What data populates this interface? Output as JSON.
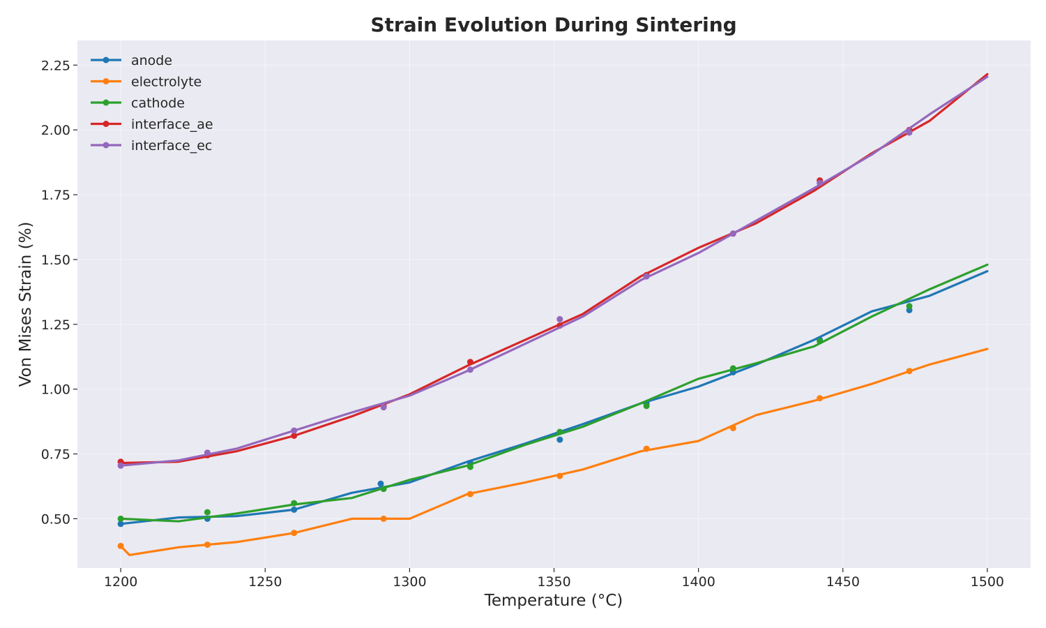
{
  "chart_data": {
    "type": "line",
    "title": "Strain Evolution During Sintering",
    "xlabel": "Temperature (°C)",
    "ylabel": "Von Mises Strain (%)",
    "xlim": [
      1185,
      1515
    ],
    "ylim": [
      0.31,
      2.345
    ],
    "xticks": [
      1200,
      1250,
      1300,
      1350,
      1400,
      1450,
      1500
    ],
    "yticks": [
      0.5,
      0.75,
      1.0,
      1.25,
      1.5,
      1.75,
      2.0,
      2.25
    ],
    "ytick_labels": [
      "0.50",
      "0.75",
      "1.00",
      "1.25",
      "1.50",
      "1.75",
      "2.00",
      "2.25"
    ],
    "grid": true,
    "legend": "top-left",
    "series": [
      {
        "name": "anode",
        "color": "#1f77b4",
        "x": [
          1200,
          1220,
          1240,
          1260,
          1280,
          1300,
          1320,
          1340,
          1360,
          1380,
          1400,
          1420,
          1440,
          1460,
          1480,
          1500
        ],
        "y": [
          0.48,
          0.505,
          0.51,
          0.535,
          0.6,
          0.64,
          0.72,
          0.79,
          0.865,
          0.945,
          1.01,
          1.095,
          1.19,
          1.3,
          1.36,
          1.455
        ],
        "markers": [
          [
            1200,
            0.48
          ],
          [
            1230,
            0.5
          ],
          [
            1260,
            0.535
          ],
          [
            1290,
            0.635
          ],
          [
            1321,
            0.715
          ],
          [
            1352,
            0.805
          ],
          [
            1382,
            0.945
          ],
          [
            1412,
            1.065
          ],
          [
            1442,
            1.19
          ],
          [
            1473,
            1.305
          ]
        ]
      },
      {
        "name": "electrolyte",
        "color": "#ff7f0e",
        "x": [
          1200,
          1203,
          1220,
          1240,
          1260,
          1280,
          1300,
          1320,
          1340,
          1360,
          1380,
          1400,
          1420,
          1440,
          1460,
          1480,
          1500
        ],
        "y": [
          0.395,
          0.36,
          0.39,
          0.41,
          0.445,
          0.5,
          0.5,
          0.595,
          0.64,
          0.69,
          0.76,
          0.8,
          0.9,
          0.955,
          1.02,
          1.095,
          1.155
        ],
        "markers": [
          [
            1200,
            0.395
          ],
          [
            1230,
            0.4
          ],
          [
            1260,
            0.445
          ],
          [
            1291,
            0.5
          ],
          [
            1321,
            0.595
          ],
          [
            1352,
            0.665
          ],
          [
            1382,
            0.77
          ],
          [
            1412,
            0.85
          ],
          [
            1442,
            0.965
          ],
          [
            1473,
            1.07
          ]
        ]
      },
      {
        "name": "cathode",
        "color": "#2ca02c",
        "x": [
          1200,
          1220,
          1240,
          1260,
          1280,
          1300,
          1320,
          1340,
          1360,
          1380,
          1400,
          1420,
          1440,
          1460,
          1480,
          1500
        ],
        "y": [
          0.5,
          0.49,
          0.52,
          0.555,
          0.58,
          0.65,
          0.705,
          0.785,
          0.855,
          0.945,
          1.04,
          1.1,
          1.165,
          1.28,
          1.385,
          1.48
        ],
        "markers": [
          [
            1200,
            0.5
          ],
          [
            1230,
            0.525
          ],
          [
            1260,
            0.56
          ],
          [
            1291,
            0.615
          ],
          [
            1321,
            0.7
          ],
          [
            1352,
            0.835
          ],
          [
            1382,
            0.935
          ],
          [
            1412,
            1.08
          ],
          [
            1442,
            1.185
          ],
          [
            1473,
            1.32
          ]
        ]
      },
      {
        "name": "interface_ae",
        "color": "#d62728",
        "x": [
          1200,
          1220,
          1240,
          1260,
          1280,
          1300,
          1320,
          1340,
          1360,
          1380,
          1400,
          1420,
          1440,
          1460,
          1480,
          1500
        ],
        "y": [
          0.715,
          0.72,
          0.76,
          0.82,
          0.895,
          0.98,
          1.09,
          1.19,
          1.29,
          1.435,
          1.545,
          1.64,
          1.765,
          1.91,
          2.035,
          2.215
        ],
        "markers": [
          [
            1200,
            0.72
          ],
          [
            1230,
            0.745
          ],
          [
            1260,
            0.82
          ],
          [
            1291,
            0.935
          ],
          [
            1321,
            1.105
          ],
          [
            1352,
            1.245
          ],
          [
            1382,
            1.44
          ],
          [
            1412,
            1.6
          ],
          [
            1442,
            1.805
          ],
          [
            1473,
            2.0
          ]
        ]
      },
      {
        "name": "interface_ec",
        "color": "#9467bd",
        "x": [
          1200,
          1220,
          1240,
          1260,
          1280,
          1300,
          1320,
          1340,
          1360,
          1380,
          1400,
          1420,
          1440,
          1460,
          1480,
          1500
        ],
        "y": [
          0.705,
          0.725,
          0.77,
          0.84,
          0.91,
          0.975,
          1.07,
          1.175,
          1.28,
          1.42,
          1.525,
          1.65,
          1.775,
          1.905,
          2.06,
          2.205
        ],
        "markers": [
          [
            1200,
            0.705
          ],
          [
            1230,
            0.755
          ],
          [
            1260,
            0.84
          ],
          [
            1291,
            0.93
          ],
          [
            1321,
            1.075
          ],
          [
            1352,
            1.27
          ],
          [
            1382,
            1.435
          ],
          [
            1412,
            1.6
          ],
          [
            1442,
            1.795
          ],
          [
            1473,
            1.99
          ]
        ]
      }
    ]
  }
}
